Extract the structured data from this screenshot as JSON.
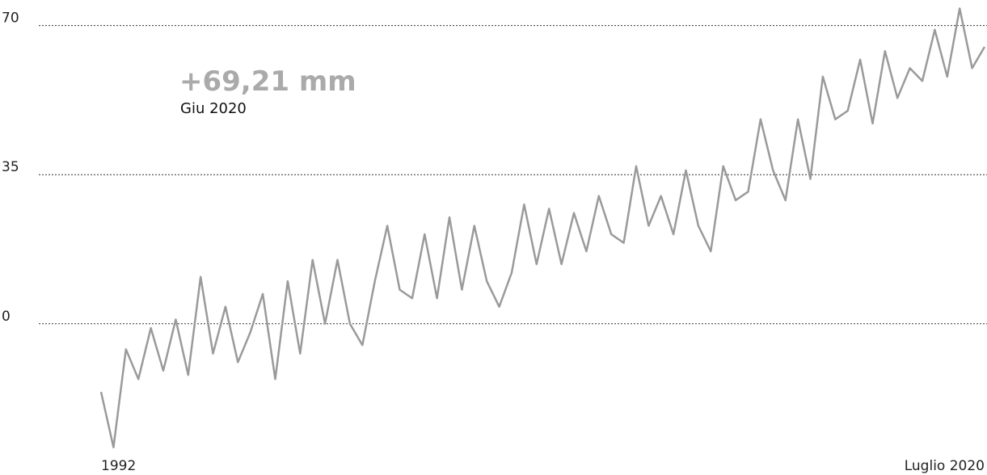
{
  "chart_data": {
    "type": "line",
    "annotations": [
      "+69,21 mm",
      "Giu 2020"
    ],
    "categories": [
      "1992",
      null,
      null,
      null,
      null,
      null,
      null,
      null,
      null,
      null,
      null,
      null,
      null,
      null,
      null,
      null,
      null,
      null,
      null,
      null,
      null,
      null,
      null,
      null,
      null,
      null,
      null,
      null,
      null,
      null,
      null,
      null,
      null,
      null,
      null,
      null,
      null,
      null,
      null,
      null,
      null,
      null,
      null,
      null,
      null,
      null,
      null,
      null,
      null,
      null,
      null,
      null,
      null,
      null,
      null,
      null,
      null,
      null,
      null,
      null,
      null,
      null,
      null,
      null,
      null,
      null,
      null,
      null,
      null,
      null,
      null,
      "Luglio 2020"
    ],
    "values": [
      -16,
      -29,
      -6,
      -13,
      -1,
      -11,
      1,
      -12,
      11,
      -7,
      4,
      -9,
      -2,
      7,
      -13,
      10,
      -7,
      15,
      0,
      15,
      0,
      -5,
      10,
      23,
      8,
      6,
      21,
      6,
      25,
      8,
      23,
      10,
      4,
      12,
      28,
      14,
      27,
      14,
      26,
      17,
      30,
      21,
      19,
      37,
      23,
      30,
      21,
      36,
      23,
      17,
      37,
      29,
      31,
      48,
      36,
      29,
      48,
      34,
      58,
      48,
      50,
      62,
      47,
      64,
      53,
      60,
      57,
      69,
      58,
      74,
      60,
      65
    ],
    "color": "#9a9a9a",
    "ylim": [
      -30,
      76
    ],
    "yticks": [
      0,
      35,
      70
    ],
    "grid": true
  }
}
